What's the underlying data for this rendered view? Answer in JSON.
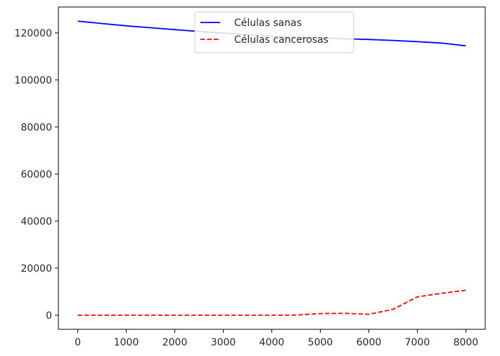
{
  "chart_data": {
    "type": "line",
    "title": "",
    "xlabel": "",
    "ylabel": "",
    "xlim": [
      -400,
      8400
    ],
    "ylim": [
      -6000,
      131000
    ],
    "grid": false,
    "legend_position": "upper-center",
    "x_ticks": [
      0,
      1000,
      2000,
      3000,
      4000,
      5000,
      6000,
      7000,
      8000
    ],
    "x_tick_labels": [
      "0",
      "1000",
      "2000",
      "3000",
      "4000",
      "5000",
      "6000",
      "7000",
      "8000"
    ],
    "y_ticks": [
      0,
      20000,
      40000,
      60000,
      80000,
      100000,
      120000
    ],
    "y_tick_labels": [
      "0",
      "20000",
      "40000",
      "60000",
      "80000",
      "100000",
      "120000"
    ],
    "series": [
      {
        "name": "Células sanas",
        "color": "#0000ff",
        "style": "solid",
        "x": [
          0,
          500,
          1000,
          1500,
          2000,
          2500,
          3000,
          3500,
          4000,
          4500,
          5000,
          5500,
          6000,
          6500,
          7000,
          7500,
          8000
        ],
        "values": [
          125000,
          124000,
          123000,
          122200,
          121400,
          120600,
          119900,
          119200,
          118600,
          118100,
          117900,
          117500,
          117200,
          116800,
          116300,
          115700,
          114500
        ]
      },
      {
        "name": "Células cancerosas",
        "color": "#ff0000",
        "style": "dashed",
        "x": [
          0,
          500,
          1000,
          1500,
          2000,
          2500,
          3000,
          3500,
          4000,
          4500,
          5000,
          5500,
          6000,
          6500,
          7000,
          7500,
          8000
        ],
        "values": [
          0,
          0,
          0,
          0,
          0,
          0,
          0,
          0,
          0,
          50,
          700,
          800,
          400,
          2500,
          7800,
          9300,
          10600
        ]
      }
    ]
  }
}
